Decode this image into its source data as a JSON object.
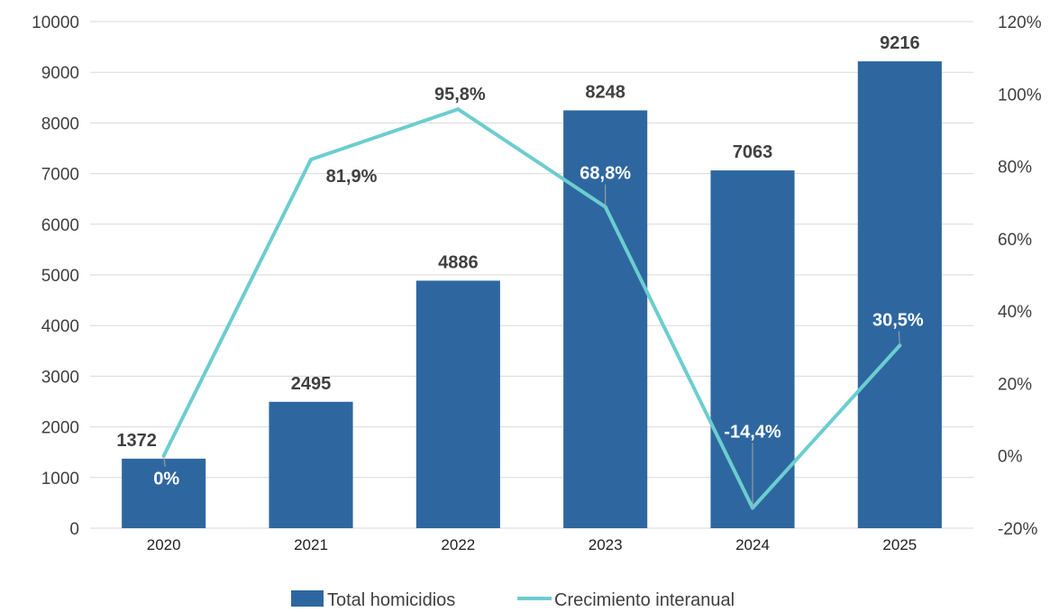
{
  "chart_data": {
    "type": "bar",
    "categories": [
      "2020",
      "2021",
      "2022",
      "2023",
      "2024",
      "2025"
    ],
    "series": [
      {
        "name": "Total homicidios",
        "type": "bar",
        "axis": "left",
        "values": [
          1372,
          2495,
          4886,
          8248,
          7063,
          9216
        ],
        "labels": [
          "1372",
          "2495",
          "4886",
          "8248",
          "7063",
          "9216"
        ],
        "color": "#2E67A0"
      },
      {
        "name": "Crecimiento interanual",
        "type": "line",
        "axis": "right",
        "values": [
          0,
          81.9,
          95.8,
          68.8,
          -14.4,
          30.5
        ],
        "labels": [
          "0%",
          "81,9%",
          "95,8%",
          "68,8%",
          "-14,4%",
          "30,5%"
        ],
        "color": "#6CCDCF"
      }
    ],
    "y_left": {
      "ylim": [
        0,
        10000
      ],
      "ticks": [
        0,
        1000,
        2000,
        3000,
        4000,
        5000,
        6000,
        7000,
        8000,
        9000,
        10000
      ],
      "tick_labels": [
        "0",
        "1000",
        "2000",
        "3000",
        "4000",
        "5000",
        "6000",
        "7000",
        "8000",
        "9000",
        "10000"
      ]
    },
    "y_right": {
      "ylim": [
        -20,
        120
      ],
      "ticks": [
        -20,
        0,
        20,
        40,
        60,
        80,
        100,
        120
      ],
      "tick_labels": [
        "-20%",
        "0%",
        "20%",
        "40%",
        "60%",
        "80%",
        "100%",
        "120%"
      ]
    },
    "grid": true,
    "legend": "bottom-center",
    "colors": {
      "grid": "#D9D9D9",
      "label_light": "#FFFFFF",
      "label_dark": "#404040",
      "leader": "#A6A6A6"
    }
  }
}
